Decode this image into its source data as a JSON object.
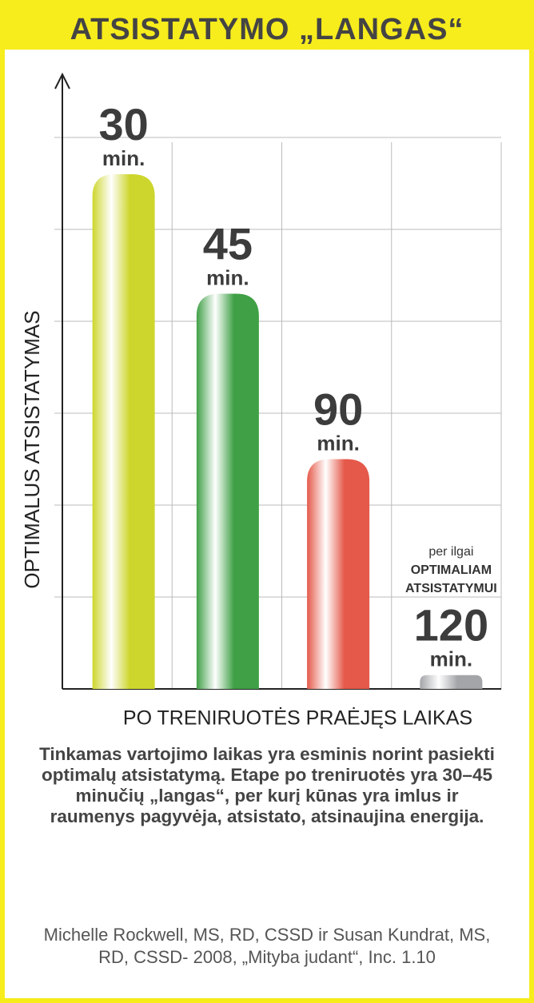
{
  "chart_data": {
    "type": "bar",
    "title": "ATSISTATYMO „LANGAS“",
    "y_label": "OPTIMALUS ATSISTATYMAS",
    "x_label": "PO TRENIRUOTĖS PRAĖJĘS LAIKAS",
    "categories": [
      "30",
      "45",
      "90",
      "120"
    ],
    "unit_label": "min.",
    "values": [
      5.6,
      4.3,
      2.5,
      0.15
    ],
    "colors": [
      "#cdd62c",
      "#3fa046",
      "#e5594a",
      "#a3a5a8"
    ],
    "ylim": [
      0,
      6.6
    ],
    "yticks": [
      1,
      2,
      3,
      4,
      5,
      6
    ],
    "grid": true,
    "annotation": {
      "category_index": 3,
      "lines": [
        "per ilgai",
        "OPTIMALIAM",
        "ATSISTATYMUI"
      ]
    }
  },
  "text": {
    "paragraph": "Tinkamas vartojimo laikas yra esminis norint pasiekti optimalų atsistatymą. Etape po treniruotės yra 30–45 minučių „langas“, per kurį kūnas yra imlus ir raumenys pagyvėja, atsistato, atsinaujina energija.",
    "citation": "Michelle Rockwell, MS, RD, CSSD ir Susan Kundrat, MS, RD, CSSD- 2008, „Mityba judant“, Inc. 1.10"
  }
}
